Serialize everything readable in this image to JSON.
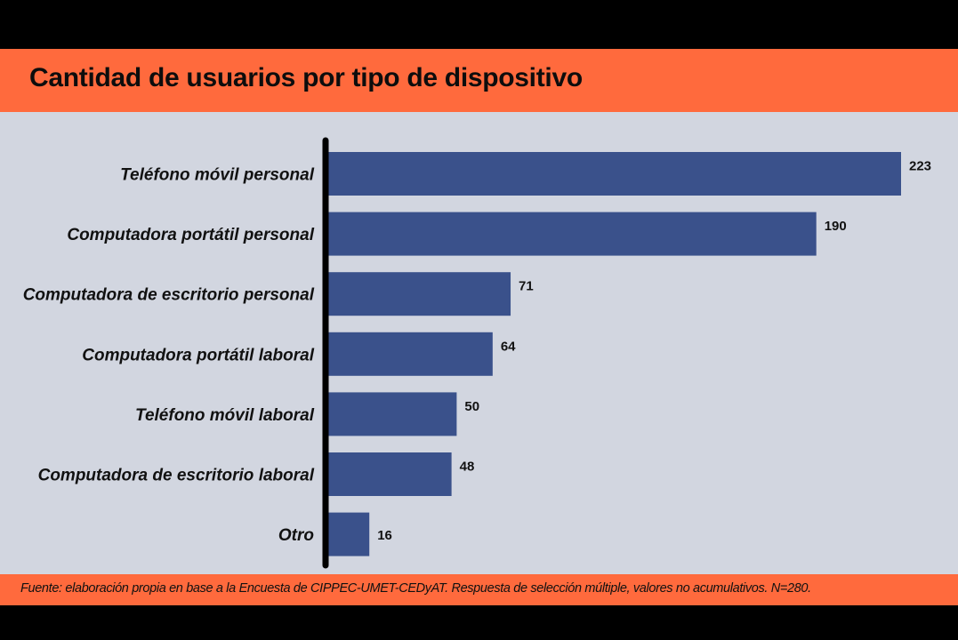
{
  "colors": {
    "banner": "#ff6a3d",
    "plot_background": "#d2d6e0",
    "bar": "#3a518b",
    "axis": "#000000",
    "outer_background": "#000000"
  },
  "chart_data": {
    "type": "bar",
    "orientation": "horizontal",
    "title": "Cantidad de usuarios por tipo de dispositivo",
    "categories": [
      "Teléfono móvil personal",
      "Computadora portátil personal",
      "Computadora de escritorio personal",
      "Computadora portátil laboral",
      "Teléfono móvil laboral",
      "Computadora de escritorio laboral",
      "Otro"
    ],
    "values": [
      223,
      190,
      71,
      64,
      50,
      48,
      16
    ],
    "data_labels": [
      "223",
      "190",
      "71",
      "64",
      "50",
      "48",
      "16"
    ],
    "xlim": [
      0,
      223
    ],
    "grid": false,
    "legend": "none"
  },
  "footer": {
    "source": "Fuente: elaboración propia en base a la Encuesta de CIPPEC-UMET-CEDyAT. Respuesta de selección múltiple, valores no acumulativos. N=280."
  }
}
